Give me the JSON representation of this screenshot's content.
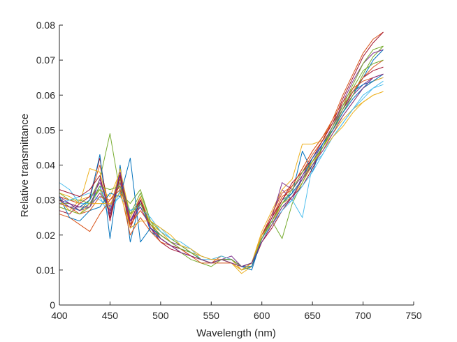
{
  "chart_data": {
    "type": "line",
    "title": "",
    "xlabel": "Wavelength (nm)",
    "ylabel": "Relative transmittance",
    "xlim": [
      400,
      750
    ],
    "ylim": [
      0,
      0.08
    ],
    "xticks": [
      400,
      450,
      500,
      550,
      600,
      650,
      700,
      750
    ],
    "yticks": [
      0,
      0.01,
      0.02,
      0.03,
      0.04,
      0.05,
      0.06,
      0.07,
      0.08
    ],
    "xtick_labels": [
      "400",
      "450",
      "500",
      "550",
      "600",
      "650",
      "700",
      "750"
    ],
    "ytick_labels": [
      "0",
      "0.01",
      "0.02",
      "0.03",
      "0.04",
      "0.05",
      "0.06",
      "0.07",
      "0.08"
    ],
    "grid": false,
    "legend": "none",
    "x": [
      400,
      410,
      420,
      430,
      440,
      450,
      460,
      470,
      480,
      490,
      500,
      510,
      520,
      530,
      540,
      550,
      560,
      570,
      580,
      590,
      600,
      610,
      620,
      630,
      640,
      650,
      660,
      670,
      680,
      690,
      700,
      710,
      720
    ],
    "series": [
      {
        "color": "#0072BD",
        "values": [
          0.03,
          0.028,
          0.027,
          0.029,
          0.034,
          0.026,
          0.038,
          0.024,
          0.03,
          0.022,
          0.02,
          0.018,
          0.016,
          0.015,
          0.013,
          0.012,
          0.013,
          0.013,
          0.011,
          0.012,
          0.019,
          0.024,
          0.029,
          0.031,
          0.036,
          0.041,
          0.045,
          0.05,
          0.055,
          0.06,
          0.065,
          0.07,
          0.073
        ]
      },
      {
        "color": "#D95319",
        "values": [
          0.031,
          0.03,
          0.029,
          0.031,
          0.04,
          0.027,
          0.036,
          0.022,
          0.029,
          0.023,
          0.019,
          0.017,
          0.016,
          0.014,
          0.013,
          0.012,
          0.014,
          0.013,
          0.01,
          0.012,
          0.02,
          0.025,
          0.031,
          0.033,
          0.038,
          0.043,
          0.047,
          0.053,
          0.06,
          0.066,
          0.072,
          0.076,
          0.078
        ]
      },
      {
        "color": "#EDB120",
        "values": [
          0.028,
          0.027,
          0.03,
          0.031,
          0.033,
          0.031,
          0.038,
          0.026,
          0.028,
          0.024,
          0.021,
          0.018,
          0.016,
          0.015,
          0.013,
          0.012,
          0.013,
          0.012,
          0.009,
          0.011,
          0.018,
          0.023,
          0.028,
          0.031,
          0.035,
          0.04,
          0.045,
          0.049,
          0.053,
          0.056,
          0.058,
          0.06,
          0.061
        ]
      },
      {
        "color": "#7E2F8E",
        "values": [
          0.031,
          0.029,
          0.028,
          0.03,
          0.035,
          0.028,
          0.037,
          0.025,
          0.031,
          0.023,
          0.02,
          0.018,
          0.017,
          0.015,
          0.014,
          0.013,
          0.013,
          0.014,
          0.011,
          0.012,
          0.02,
          0.026,
          0.033,
          0.03,
          0.037,
          0.042,
          0.046,
          0.051,
          0.056,
          0.06,
          0.063,
          0.065,
          0.066
        ]
      },
      {
        "color": "#77AC30",
        "values": [
          0.029,
          0.029,
          0.027,
          0.03,
          0.036,
          0.049,
          0.032,
          0.029,
          0.033,
          0.024,
          0.019,
          0.017,
          0.015,
          0.013,
          0.012,
          0.011,
          0.013,
          0.013,
          0.01,
          0.012,
          0.019,
          0.024,
          0.019,
          0.029,
          0.035,
          0.041,
          0.045,
          0.05,
          0.055,
          0.06,
          0.066,
          0.071,
          0.074
        ]
      },
      {
        "color": "#4DBEEE",
        "values": [
          0.035,
          0.033,
          0.029,
          0.029,
          0.031,
          0.025,
          0.033,
          0.027,
          0.029,
          0.024,
          0.022,
          0.019,
          0.017,
          0.016,
          0.013,
          0.013,
          0.014,
          0.013,
          0.011,
          0.012,
          0.019,
          0.023,
          0.028,
          0.03,
          0.025,
          0.04,
          0.043,
          0.048,
          0.052,
          0.056,
          0.059,
          0.062,
          0.064
        ]
      },
      {
        "color": "#A2142F",
        "values": [
          0.027,
          0.026,
          0.029,
          0.031,
          0.042,
          0.024,
          0.037,
          0.023,
          0.031,
          0.022,
          0.018,
          0.016,
          0.015,
          0.014,
          0.013,
          0.012,
          0.013,
          0.013,
          0.011,
          0.011,
          0.018,
          0.022,
          0.027,
          0.031,
          0.034,
          0.039,
          0.045,
          0.05,
          0.056,
          0.061,
          0.065,
          0.067,
          0.068
        ]
      },
      {
        "color": "#0072BD",
        "values": [
          0.029,
          0.028,
          0.028,
          0.03,
          0.043,
          0.019,
          0.04,
          0.018,
          0.03,
          0.021,
          0.019,
          0.017,
          0.016,
          0.015,
          0.013,
          0.012,
          0.013,
          0.013,
          0.011,
          0.01,
          0.019,
          0.024,
          0.03,
          0.032,
          0.044,
          0.038,
          0.046,
          0.051,
          0.057,
          0.061,
          0.063,
          0.064,
          0.065
        ]
      },
      {
        "color": "#D95319",
        "values": [
          0.026,
          0.025,
          0.023,
          0.021,
          0.026,
          0.03,
          0.033,
          0.02,
          0.025,
          0.021,
          0.018,
          0.017,
          0.015,
          0.014,
          0.012,
          0.012,
          0.013,
          0.012,
          0.01,
          0.011,
          0.019,
          0.024,
          0.03,
          0.034,
          0.039,
          0.044,
          0.048,
          0.052,
          0.057,
          0.061,
          0.065,
          0.068,
          0.07
        ]
      },
      {
        "color": "#EDB120",
        "values": [
          0.032,
          0.031,
          0.029,
          0.039,
          0.038,
          0.027,
          0.039,
          0.025,
          0.031,
          0.023,
          0.021,
          0.018,
          0.016,
          0.015,
          0.014,
          0.013,
          0.014,
          0.013,
          0.01,
          0.012,
          0.021,
          0.027,
          0.033,
          0.036,
          0.046,
          0.046,
          0.047,
          0.05,
          0.054,
          0.058,
          0.062,
          0.064,
          0.065
        ]
      },
      {
        "color": "#7E2F8E",
        "values": [
          0.03,
          0.029,
          0.027,
          0.028,
          0.032,
          0.027,
          0.035,
          0.024,
          0.03,
          0.022,
          0.019,
          0.017,
          0.015,
          0.014,
          0.013,
          0.012,
          0.013,
          0.013,
          0.011,
          0.012,
          0.019,
          0.025,
          0.035,
          0.033,
          0.037,
          0.041,
          0.046,
          0.051,
          0.058,
          0.064,
          0.069,
          0.072,
          0.073
        ]
      },
      {
        "color": "#77AC30",
        "values": [
          0.032,
          0.03,
          0.03,
          0.029,
          0.033,
          0.026,
          0.036,
          0.026,
          0.032,
          0.024,
          0.021,
          0.019,
          0.017,
          0.015,
          0.013,
          0.012,
          0.013,
          0.012,
          0.01,
          0.011,
          0.02,
          0.024,
          0.029,
          0.032,
          0.036,
          0.04,
          0.045,
          0.05,
          0.056,
          0.062,
          0.067,
          0.069,
          0.07
        ]
      },
      {
        "color": "#4DBEEE",
        "values": [
          0.029,
          0.03,
          0.031,
          0.032,
          0.03,
          0.028,
          0.031,
          0.027,
          0.028,
          0.025,
          0.021,
          0.019,
          0.018,
          0.016,
          0.014,
          0.013,
          0.014,
          0.013,
          0.011,
          0.012,
          0.019,
          0.023,
          0.027,
          0.03,
          0.034,
          0.038,
          0.043,
          0.048,
          0.052,
          0.056,
          0.06,
          0.062,
          0.063
        ]
      },
      {
        "color": "#A2142F",
        "values": [
          0.033,
          0.032,
          0.031,
          0.033,
          0.037,
          0.025,
          0.037,
          0.022,
          0.03,
          0.022,
          0.019,
          0.017,
          0.016,
          0.014,
          0.013,
          0.012,
          0.013,
          0.013,
          0.011,
          0.012,
          0.02,
          0.025,
          0.03,
          0.035,
          0.038,
          0.042,
          0.047,
          0.052,
          0.059,
          0.065,
          0.071,
          0.075,
          0.078
        ]
      },
      {
        "color": "#0072BD",
        "values": [
          0.031,
          0.025,
          0.024,
          0.027,
          0.028,
          0.032,
          0.031,
          0.042,
          0.018,
          0.022,
          0.02,
          0.018,
          0.016,
          0.015,
          0.013,
          0.012,
          0.013,
          0.013,
          0.011,
          0.011,
          0.019,
          0.024,
          0.029,
          0.032,
          0.036,
          0.042,
          0.046,
          0.05,
          0.055,
          0.059,
          0.062,
          0.064,
          0.066
        ]
      },
      {
        "color": "#D95319",
        "values": [
          0.029,
          0.028,
          0.026,
          0.027,
          0.031,
          0.03,
          0.034,
          0.023,
          0.027,
          0.023,
          0.02,
          0.018,
          0.016,
          0.014,
          0.013,
          0.012,
          0.012,
          0.012,
          0.01,
          0.012,
          0.02,
          0.026,
          0.032,
          0.034,
          0.039,
          0.044,
          0.048,
          0.053,
          0.058,
          0.062,
          0.064,
          0.065,
          0.066
        ]
      },
      {
        "color": "#EDB120",
        "values": [
          0.03,
          0.027,
          0.026,
          0.029,
          0.029,
          0.029,
          0.032,
          0.022,
          0.024,
          0.024,
          0.022,
          0.02,
          0.017,
          0.016,
          0.014,
          0.013,
          0.013,
          0.012,
          0.01,
          0.012,
          0.02,
          0.023,
          0.029,
          0.031,
          0.036,
          0.041,
          0.044,
          0.048,
          0.051,
          0.055,
          0.058,
          0.06,
          0.061
        ]
      },
      {
        "color": "#77AC30",
        "values": [
          0.028,
          0.027,
          0.026,
          0.028,
          0.034,
          0.033,
          0.034,
          0.026,
          0.029,
          0.023,
          0.02,
          0.018,
          0.016,
          0.015,
          0.013,
          0.012,
          0.013,
          0.013,
          0.011,
          0.012,
          0.019,
          0.024,
          0.029,
          0.033,
          0.038,
          0.041,
          0.045,
          0.051,
          0.057,
          0.063,
          0.069,
          0.073,
          0.074
        ]
      },
      {
        "color": "#7E2F8E",
        "values": [
          0.03,
          0.028,
          0.028,
          0.028,
          0.036,
          0.026,
          0.038,
          0.024,
          0.028,
          0.022,
          0.019,
          0.017,
          0.015,
          0.014,
          0.013,
          0.012,
          0.013,
          0.012,
          0.011,
          0.012,
          0.018,
          0.023,
          0.028,
          0.031,
          0.036,
          0.04,
          0.044,
          0.049,
          0.054,
          0.058,
          0.062,
          0.065,
          0.066
        ]
      }
    ]
  }
}
